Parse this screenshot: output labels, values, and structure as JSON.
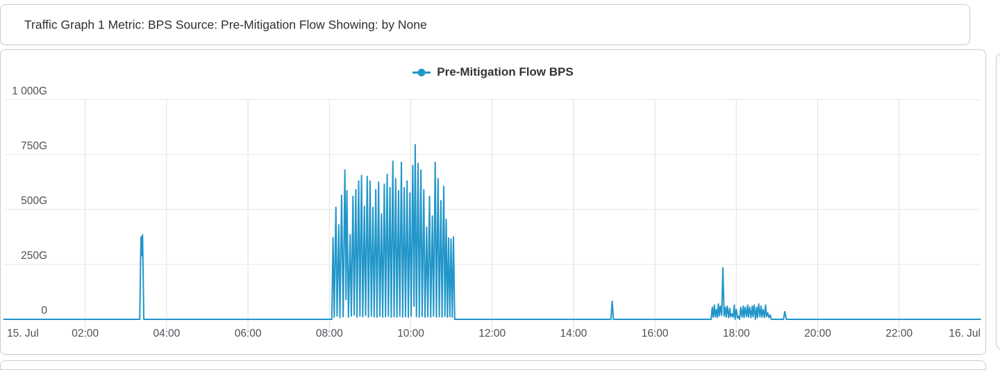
{
  "header": {
    "title": "Traffic Graph 1 Metric: BPS Source: Pre-Mitigation Flow Showing: by None"
  },
  "colors": {
    "series_blue": "#2196c9",
    "grid_h": "#e8e8e8",
    "grid_v": "#e0e0e0",
    "card_border": "#cccccc",
    "tick_text": "#4c5157",
    "title_text": "#2f2f2f"
  },
  "chart_data": {
    "type": "line",
    "title": "Pre-Mitigation Flow BPS",
    "xlabel": "",
    "ylabel": "",
    "x_unit": "hours (15. Jul 00:00 through 16. Jul 00:00)",
    "y_unit": "Gbps",
    "xlim": [
      0,
      24
    ],
    "ylim": [
      0,
      1000
    ],
    "grid": true,
    "legend_position": "top-center",
    "x_ticks": [
      {
        "t": 0,
        "label": "15. Jul"
      },
      {
        "t": 2,
        "label": "02:00"
      },
      {
        "t": 4,
        "label": "04:00"
      },
      {
        "t": 6,
        "label": "06:00"
      },
      {
        "t": 8,
        "label": "08:00"
      },
      {
        "t": 10,
        "label": "10:00"
      },
      {
        "t": 12,
        "label": "12:00"
      },
      {
        "t": 14,
        "label": "14:00"
      },
      {
        "t": 16,
        "label": "16:00"
      },
      {
        "t": 18,
        "label": "18:00"
      },
      {
        "t": 20,
        "label": "20:00"
      },
      {
        "t": 22,
        "label": "22:00"
      },
      {
        "t": 24,
        "label": "16. Jul"
      }
    ],
    "y_ticks": [
      {
        "v": 1000,
        "label": "1 000G"
      },
      {
        "v": 750,
        "label": "750G"
      },
      {
        "v": 500,
        "label": "500G"
      },
      {
        "v": 250,
        "label": "250G"
      },
      {
        "v": 0,
        "label": "0"
      }
    ],
    "series": [
      {
        "name": "Pre-Mitigation Flow BPS",
        "color": "#2196c9",
        "points": [
          [
            0,
            0
          ],
          [
            3.34,
            0
          ],
          [
            3.37,
            375
          ],
          [
            3.39,
            290
          ],
          [
            3.41,
            385
          ],
          [
            3.44,
            0
          ],
          [
            8.0,
            0
          ],
          [
            8.06,
            0
          ],
          [
            8.09,
            372
          ],
          [
            8.12,
            10
          ],
          [
            8.16,
            510
          ],
          [
            8.19,
            15
          ],
          [
            8.23,
            430
          ],
          [
            8.26,
            8
          ],
          [
            8.3,
            565
          ],
          [
            8.34,
            12
          ],
          [
            8.38,
            680
          ],
          [
            8.41,
            90
          ],
          [
            8.43,
            585
          ],
          [
            8.47,
            10
          ],
          [
            8.51,
            385
          ],
          [
            8.54,
            15
          ],
          [
            8.58,
            560
          ],
          [
            8.61,
            20
          ],
          [
            8.65,
            590
          ],
          [
            8.68,
            10
          ],
          [
            8.72,
            630
          ],
          [
            8.75,
            15
          ],
          [
            8.79,
            655
          ],
          [
            8.82,
            12
          ],
          [
            8.86,
            515
          ],
          [
            8.89,
            18
          ],
          [
            8.93,
            650
          ],
          [
            8.96,
            10
          ],
          [
            9.0,
            630
          ],
          [
            9.03,
            15
          ],
          [
            9.07,
            510
          ],
          [
            9.1,
            12
          ],
          [
            9.14,
            590
          ],
          [
            9.17,
            10
          ],
          [
            9.21,
            625
          ],
          [
            9.24,
            14
          ],
          [
            9.28,
            480
          ],
          [
            9.31,
            10
          ],
          [
            9.35,
            615
          ],
          [
            9.38,
            12
          ],
          [
            9.42,
            660
          ],
          [
            9.45,
            15
          ],
          [
            9.49,
            600
          ],
          [
            9.52,
            10
          ],
          [
            9.56,
            720
          ],
          [
            9.59,
            12
          ],
          [
            9.63,
            640
          ],
          [
            9.66,
            10
          ],
          [
            9.7,
            585
          ],
          [
            9.73,
            14
          ],
          [
            9.77,
            715
          ],
          [
            9.8,
            10
          ],
          [
            9.84,
            600
          ],
          [
            9.87,
            12
          ],
          [
            9.91,
            630
          ],
          [
            9.94,
            10
          ],
          [
            9.98,
            575
          ],
          [
            10.01,
            15
          ],
          [
            10.05,
            700
          ],
          [
            10.08,
            60
          ],
          [
            10.11,
            795
          ],
          [
            10.14,
            12
          ],
          [
            10.18,
            710
          ],
          [
            10.21,
            10
          ],
          [
            10.25,
            680
          ],
          [
            10.28,
            14
          ],
          [
            10.32,
            590
          ],
          [
            10.35,
            10
          ],
          [
            10.39,
            420
          ],
          [
            10.42,
            12
          ],
          [
            10.46,
            560
          ],
          [
            10.49,
            10
          ],
          [
            10.53,
            470
          ],
          [
            10.56,
            15
          ],
          [
            10.6,
            715
          ],
          [
            10.63,
            10
          ],
          [
            10.67,
            640
          ],
          [
            10.7,
            12
          ],
          [
            10.74,
            540
          ],
          [
            10.77,
            10
          ],
          [
            10.81,
            605
          ],
          [
            10.84,
            14
          ],
          [
            10.87,
            455
          ],
          [
            10.9,
            10
          ],
          [
            10.93,
            370
          ],
          [
            10.96,
            12
          ],
          [
            10.99,
            365
          ],
          [
            11.02,
            10
          ],
          [
            11.05,
            375
          ],
          [
            11.08,
            0
          ],
          [
            14.92,
            0
          ],
          [
            14.95,
            82
          ],
          [
            14.98,
            0
          ],
          [
            17.38,
            0
          ],
          [
            17.41,
            55
          ],
          [
            17.43,
            10
          ],
          [
            17.46,
            65
          ],
          [
            17.48,
            12
          ],
          [
            17.51,
            45
          ],
          [
            17.53,
            8
          ],
          [
            17.56,
            70
          ],
          [
            17.58,
            15
          ],
          [
            17.61,
            60
          ],
          [
            17.64,
            18
          ],
          [
            17.67,
            235
          ],
          [
            17.7,
            15
          ],
          [
            17.73,
            55
          ],
          [
            17.75,
            10
          ],
          [
            17.78,
            60
          ],
          [
            17.81,
            8
          ],
          [
            17.84,
            50
          ],
          [
            17.86,
            12
          ],
          [
            17.89,
            25
          ],
          [
            17.92,
            10
          ],
          [
            17.95,
            65
          ],
          [
            17.97,
            0
          ],
          [
            18.0,
            45
          ],
          [
            18.03,
            6
          ],
          [
            18.06,
            15
          ],
          [
            18.08,
            0
          ],
          [
            18.11,
            55
          ],
          [
            18.14,
            10
          ],
          [
            18.17,
            60
          ],
          [
            18.19,
            8
          ],
          [
            18.22,
            55
          ],
          [
            18.25,
            12
          ],
          [
            18.28,
            65
          ],
          [
            18.3,
            10
          ],
          [
            18.33,
            55
          ],
          [
            18.36,
            8
          ],
          [
            18.39,
            60
          ],
          [
            18.41,
            12
          ],
          [
            18.44,
            65
          ],
          [
            18.47,
            0
          ],
          [
            18.5,
            55
          ],
          [
            18.52,
            8
          ],
          [
            18.55,
            70
          ],
          [
            18.58,
            12
          ],
          [
            18.61,
            60
          ],
          [
            18.63,
            10
          ],
          [
            18.66,
            45
          ],
          [
            18.69,
            8
          ],
          [
            18.72,
            65
          ],
          [
            18.74,
            12
          ],
          [
            18.77,
            30
          ],
          [
            18.8,
            8
          ],
          [
            18.83,
            20
          ],
          [
            18.86,
            0
          ],
          [
            19.16,
            0
          ],
          [
            19.19,
            35
          ],
          [
            19.23,
            0
          ],
          [
            24,
            0
          ]
        ]
      }
    ]
  }
}
